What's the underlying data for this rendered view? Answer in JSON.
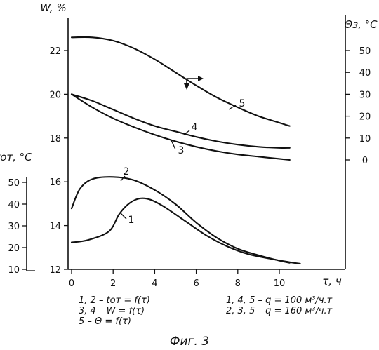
{
  "chart_data": {
    "type": "line",
    "title": "",
    "caption": "Фиг. 3",
    "axes": {
      "x": {
        "label": "τ, ч",
        "range": [
          0,
          11
        ],
        "ticks": [
          0,
          2,
          4,
          6,
          8,
          10
        ],
        "tick_labels": [
          "0",
          "2",
          "4",
          "6",
          "8",
          "10"
        ]
      },
      "y_left_W": {
        "label": "W, %",
        "range": [
          12,
          23
        ],
        "ticks": [
          12,
          14,
          16,
          18,
          20,
          22
        ],
        "tick_labels": [
          "12",
          "14",
          "16",
          "18",
          "20",
          "22"
        ]
      },
      "y_right_theta": {
        "label": "Θз, °С",
        "range": [
          0,
          50
        ],
        "ticks": [
          0,
          10,
          20,
          30,
          40,
          50
        ],
        "tick_labels": [
          "0",
          "10",
          "20",
          "30",
          "40",
          "50"
        ]
      },
      "y_left_t": {
        "label": "tот, °С",
        "range": [
          10,
          50
        ],
        "ticks": [
          10,
          20,
          30,
          40,
          50
        ],
        "tick_labels": [
          "10",
          "20",
          "30",
          "40",
          "50"
        ]
      }
    },
    "grid": false,
    "series": [
      {
        "name": "1",
        "axis": "t",
        "x": [
          0,
          0.8,
          1.8,
          2.3,
          2.8,
          3.3,
          3.8,
          4.5,
          5.5,
          6.5,
          7.5,
          8.5,
          9.5,
          10.5,
          11.0
        ],
        "y": [
          22.4,
          23.5,
          27.5,
          35.5,
          40.5,
          42.6,
          42.0,
          38.5,
          32.0,
          25.5,
          20.5,
          17.0,
          15.0,
          13.3,
          12.6
        ]
      },
      {
        "name": "2",
        "axis": "t",
        "x": [
          0,
          0.4,
          1.0,
          2.0,
          3.0,
          4.0,
          5.0,
          6.0,
          7.0,
          8.0,
          9.0,
          10.0,
          10.5
        ],
        "y": [
          38.0,
          47.0,
          51.5,
          52.5,
          51.0,
          46.5,
          40.0,
          31.5,
          24.5,
          19.5,
          16.5,
          14.0,
          13.0
        ]
      },
      {
        "name": "3",
        "axis": "W",
        "x": [
          0,
          1,
          2,
          3,
          4,
          5,
          6,
          7,
          8,
          9,
          10,
          10.5
        ],
        "y": [
          20.0,
          19.4,
          18.9,
          18.5,
          18.15,
          17.85,
          17.6,
          17.4,
          17.25,
          17.15,
          17.05,
          17.0
        ]
      },
      {
        "name": "4",
        "axis": "W",
        "x": [
          0,
          1,
          2,
          3,
          4,
          5,
          6,
          7,
          8,
          9,
          10,
          10.5
        ],
        "y": [
          20.0,
          19.7,
          19.3,
          18.9,
          18.55,
          18.3,
          18.05,
          17.85,
          17.7,
          17.6,
          17.55,
          17.55
        ]
      },
      {
        "name": "5",
        "axis": "theta",
        "x": [
          0,
          1,
          2,
          3,
          4,
          5,
          6,
          7,
          8,
          9,
          10,
          10.5
        ],
        "y": [
          56.0,
          56.0,
          54.5,
          51.0,
          46.0,
          40.0,
          34.0,
          28.5,
          24.0,
          20.0,
          17.0,
          15.5
        ]
      }
    ],
    "annotations": {
      "legend_left": [
        "1, 2 – tот = f(τ)",
        "3, 4 – W = f(τ)",
        "5 – Θ = f(τ)"
      ],
      "legend_right": [
        "1, 4, 5 – q = 100 м³/ч.т",
        "2, 3, 5 – q = 160 м³/ч.т"
      ]
    }
  }
}
